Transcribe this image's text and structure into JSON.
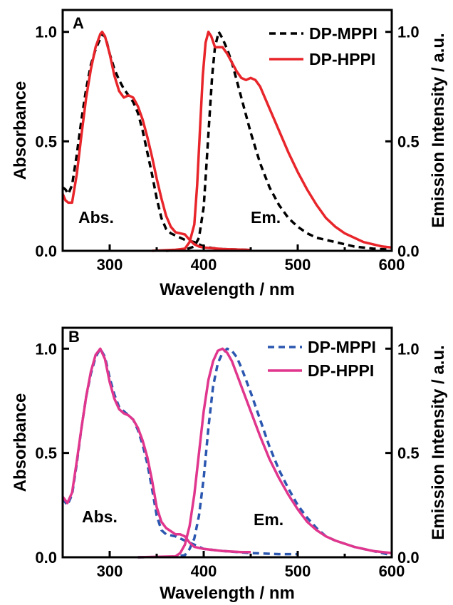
{
  "chart_data": [
    {
      "type": "line",
      "panel_label": "A",
      "xlabel": "Wavelength / nm",
      "ylabel": "Absorbance",
      "y2label": "Emission Intensity / a.u.",
      "xlim": [
        250,
        600
      ],
      "ylim": [
        0,
        1.1
      ],
      "xticks": [
        "300",
        "400",
        "500",
        "600"
      ],
      "yticks": [
        "0.0",
        "0.5",
        "1.0"
      ],
      "y2ticks": [
        "0.0",
        "0.5",
        "1.0"
      ],
      "annotations": [
        "Abs.",
        "Em."
      ],
      "legend_position": "top-right",
      "series": [
        {
          "name": "DP-MPPI",
          "color": "#000000",
          "style": "dashed",
          "role": "absorption",
          "points": [
            [
              250,
              0.29
            ],
            [
              253,
              0.28
            ],
            [
              256,
              0.26
            ],
            [
              260,
              0.3
            ],
            [
              265,
              0.44
            ],
            [
              270,
              0.6
            ],
            [
              275,
              0.74
            ],
            [
              280,
              0.85
            ],
            [
              285,
              0.92
            ],
            [
              290,
              0.97
            ],
            [
              293,
              0.99
            ],
            [
              296,
              0.97
            ],
            [
              300,
              0.9
            ],
            [
              305,
              0.83
            ],
            [
              310,
              0.78
            ],
            [
              315,
              0.74
            ],
            [
              320,
              0.71
            ],
            [
              325,
              0.68
            ],
            [
              330,
              0.63
            ],
            [
              335,
              0.55
            ],
            [
              340,
              0.45
            ],
            [
              345,
              0.35
            ],
            [
              350,
              0.24
            ],
            [
              355,
              0.15
            ],
            [
              360,
              0.1
            ],
            [
              365,
              0.08
            ],
            [
              370,
              0.07
            ],
            [
              375,
              0.06
            ],
            [
              380,
              0.05
            ],
            [
              385,
              0.045
            ],
            [
              390,
              0.04
            ],
            [
              395,
              0.03
            ],
            [
              400,
              0.02
            ],
            [
              410,
              0.012
            ],
            [
              420,
              0.008
            ],
            [
              450,
              0.004
            ]
          ]
        },
        {
          "name": "DP-MPPI",
          "color": "#000000",
          "style": "dashed",
          "role": "emission",
          "points": [
            [
              360,
              0.0
            ],
            [
              380,
              0.005
            ],
            [
              390,
              0.02
            ],
            [
              395,
              0.06
            ],
            [
              400,
              0.2
            ],
            [
              403,
              0.4
            ],
            [
              406,
              0.6
            ],
            [
              409,
              0.8
            ],
            [
              412,
              0.93
            ],
            [
              416,
              1.0
            ],
            [
              420,
              0.97
            ],
            [
              425,
              0.92
            ],
            [
              430,
              0.86
            ],
            [
              435,
              0.78
            ],
            [
              440,
              0.7
            ],
            [
              445,
              0.62
            ],
            [
              450,
              0.54
            ],
            [
              455,
              0.47
            ],
            [
              460,
              0.4
            ],
            [
              470,
              0.29
            ],
            [
              480,
              0.21
            ],
            [
              490,
              0.15
            ],
            [
              500,
              0.11
            ],
            [
              510,
              0.08
            ],
            [
              520,
              0.06
            ],
            [
              540,
              0.04
            ],
            [
              560,
              0.02
            ],
            [
              580,
              0.01
            ],
            [
              600,
              0.005
            ]
          ]
        },
        {
          "name": "DP-HPPI",
          "color": "#e8252a",
          "style": "solid",
          "role": "absorption",
          "points": [
            [
              250,
              0.26
            ],
            [
              253,
              0.23
            ],
            [
              256,
              0.22
            ],
            [
              260,
              0.22
            ],
            [
              265,
              0.35
            ],
            [
              270,
              0.53
            ],
            [
              275,
              0.7
            ],
            [
              280,
              0.83
            ],
            [
              285,
              0.93
            ],
            [
              290,
              0.99
            ],
            [
              292,
              1.0
            ],
            [
              295,
              0.98
            ],
            [
              300,
              0.9
            ],
            [
              305,
              0.8
            ],
            [
              310,
              0.73
            ],
            [
              315,
              0.7
            ],
            [
              320,
              0.71
            ],
            [
              325,
              0.7
            ],
            [
              330,
              0.66
            ],
            [
              335,
              0.6
            ],
            [
              340,
              0.52
            ],
            [
              345,
              0.43
            ],
            [
              350,
              0.33
            ],
            [
              355,
              0.24
            ],
            [
              360,
              0.16
            ],
            [
              365,
              0.11
            ],
            [
              370,
              0.085
            ],
            [
              375,
              0.08
            ],
            [
              380,
              0.075
            ],
            [
              385,
              0.05
            ],
            [
              390,
              0.03
            ],
            [
              395,
              0.02
            ],
            [
              400,
              0.015
            ],
            [
              420,
              0.008
            ],
            [
              450,
              0.004
            ]
          ]
        },
        {
          "name": "DP-HPPI",
          "color": "#e8252a",
          "style": "solid",
          "role": "emission",
          "points": [
            [
              345,
              0.0
            ],
            [
              370,
              0.005
            ],
            [
              380,
              0.01
            ],
            [
              385,
              0.04
            ],
            [
              390,
              0.12
            ],
            [
              393,
              0.3
            ],
            [
              396,
              0.55
            ],
            [
              399,
              0.8
            ],
            [
              402,
              0.95
            ],
            [
              405,
              1.0
            ],
            [
              408,
              0.98
            ],
            [
              412,
              0.93
            ],
            [
              416,
              0.93
            ],
            [
              420,
              0.93
            ],
            [
              425,
              0.9
            ],
            [
              430,
              0.86
            ],
            [
              435,
              0.82
            ],
            [
              440,
              0.79
            ],
            [
              445,
              0.78
            ],
            [
              450,
              0.79
            ],
            [
              455,
              0.78
            ],
            [
              460,
              0.75
            ],
            [
              470,
              0.65
            ],
            [
              480,
              0.55
            ],
            [
              490,
              0.45
            ],
            [
              500,
              0.36
            ],
            [
              510,
              0.28
            ],
            [
              520,
              0.21
            ],
            [
              530,
              0.15
            ],
            [
              540,
              0.11
            ],
            [
              550,
              0.08
            ],
            [
              560,
              0.06
            ],
            [
              570,
              0.04
            ],
            [
              580,
              0.03
            ],
            [
              590,
              0.02
            ],
            [
              600,
              0.015
            ]
          ]
        }
      ]
    },
    {
      "type": "line",
      "panel_label": "B",
      "xlabel": "Wavelength / nm",
      "ylabel": "Absorbance",
      "y2label": "Emission Intensity / a.u.",
      "xlim": [
        250,
        600
      ],
      "ylim": [
        0,
        1.1
      ],
      "xticks": [
        "300",
        "400",
        "500",
        "600"
      ],
      "yticks": [
        "0.0",
        "0.5",
        "1.0"
      ],
      "y2ticks": [
        "0.0",
        "0.5",
        "1.0"
      ],
      "annotations": [
        "Abs.",
        "Em."
      ],
      "legend_position": "top-right",
      "series": [
        {
          "name": "DP-MPPI",
          "color": "#2b57b0",
          "style": "dashed",
          "role": "absorption",
          "points": [
            [
              250,
              0.28
            ],
            [
              255,
              0.25
            ],
            [
              260,
              0.3
            ],
            [
              265,
              0.45
            ],
            [
              270,
              0.62
            ],
            [
              275,
              0.77
            ],
            [
              280,
              0.88
            ],
            [
              285,
              0.96
            ],
            [
              290,
              1.0
            ],
            [
              295,
              0.96
            ],
            [
              300,
              0.86
            ],
            [
              305,
              0.78
            ],
            [
              310,
              0.72
            ],
            [
              315,
              0.7
            ],
            [
              320,
              0.68
            ],
            [
              325,
              0.66
            ],
            [
              330,
              0.61
            ],
            [
              335,
              0.54
            ],
            [
              340,
              0.45
            ],
            [
              345,
              0.33
            ],
            [
              350,
              0.2
            ],
            [
              355,
              0.13
            ],
            [
              360,
              0.11
            ],
            [
              370,
              0.1
            ],
            [
              380,
              0.08
            ],
            [
              390,
              0.06
            ],
            [
              400,
              0.04
            ],
            [
              420,
              0.03
            ],
            [
              450,
              0.02
            ],
            [
              480,
              0.015
            ],
            [
              500,
              0.015
            ]
          ]
        },
        {
          "name": "DP-MPPI",
          "color": "#2b57b0",
          "style": "dashed",
          "role": "emission",
          "points": [
            [
              330,
              0.0
            ],
            [
              370,
              0.003
            ],
            [
              380,
              0.01
            ],
            [
              385,
              0.04
            ],
            [
              390,
              0.09
            ],
            [
              395,
              0.2
            ],
            [
              400,
              0.38
            ],
            [
              405,
              0.62
            ],
            [
              410,
              0.82
            ],
            [
              415,
              0.93
            ],
            [
              420,
              0.98
            ],
            [
              425,
              1.0
            ],
            [
              430,
              0.99
            ],
            [
              435,
              0.96
            ],
            [
              440,
              0.91
            ],
            [
              445,
              0.85
            ],
            [
              450,
              0.79
            ],
            [
              460,
              0.66
            ],
            [
              470,
              0.53
            ],
            [
              480,
              0.42
            ],
            [
              490,
              0.33
            ],
            [
              500,
              0.25
            ],
            [
              510,
              0.19
            ],
            [
              520,
              0.14
            ],
            [
              530,
              0.1
            ],
            [
              540,
              0.08
            ],
            [
              560,
              0.05
            ],
            [
              580,
              0.03
            ],
            [
              600,
              0.01
            ]
          ]
        },
        {
          "name": "DP-HPPI",
          "color": "#e0368d",
          "style": "solid",
          "role": "absorption",
          "points": [
            [
              250,
              0.29
            ],
            [
              255,
              0.26
            ],
            [
              260,
              0.31
            ],
            [
              265,
              0.46
            ],
            [
              270,
              0.62
            ],
            [
              275,
              0.77
            ],
            [
              280,
              0.89
            ],
            [
              285,
              0.97
            ],
            [
              290,
              1.0
            ],
            [
              295,
              0.95
            ],
            [
              300,
              0.84
            ],
            [
              305,
              0.76
            ],
            [
              310,
              0.71
            ],
            [
              315,
              0.69
            ],
            [
              320,
              0.68
            ],
            [
              325,
              0.66
            ],
            [
              330,
              0.62
            ],
            [
              335,
              0.56
            ],
            [
              340,
              0.48
            ],
            [
              345,
              0.37
            ],
            [
              350,
              0.24
            ],
            [
              355,
              0.17
            ],
            [
              360,
              0.14
            ],
            [
              370,
              0.11
            ],
            [
              375,
              0.11
            ],
            [
              380,
              0.1
            ],
            [
              385,
              0.07
            ],
            [
              390,
              0.05
            ],
            [
              400,
              0.04
            ],
            [
              420,
              0.03
            ],
            [
              440,
              0.025
            ],
            [
              450,
              0.025
            ]
          ]
        },
        {
          "name": "DP-HPPI",
          "color": "#e0368d",
          "style": "solid",
          "role": "emission",
          "points": [
            [
              330,
              0.0
            ],
            [
              370,
              0.004
            ],
            [
              375,
              0.02
            ],
            [
              380,
              0.06
            ],
            [
              385,
              0.15
            ],
            [
              390,
              0.3
            ],
            [
              395,
              0.5
            ],
            [
              400,
              0.7
            ],
            [
              405,
              0.85
            ],
            [
              410,
              0.94
            ],
            [
              415,
              0.99
            ],
            [
              420,
              1.0
            ],
            [
              425,
              0.98
            ],
            [
              430,
              0.94
            ],
            [
              435,
              0.88
            ],
            [
              440,
              0.82
            ],
            [
              450,
              0.7
            ],
            [
              460,
              0.58
            ],
            [
              470,
              0.47
            ],
            [
              480,
              0.38
            ],
            [
              490,
              0.3
            ],
            [
              500,
              0.23
            ],
            [
              510,
              0.17
            ],
            [
              520,
              0.13
            ],
            [
              530,
              0.1
            ],
            [
              540,
              0.08
            ],
            [
              560,
              0.05
            ],
            [
              580,
              0.03
            ],
            [
              600,
              0.02
            ]
          ]
        }
      ]
    }
  ]
}
